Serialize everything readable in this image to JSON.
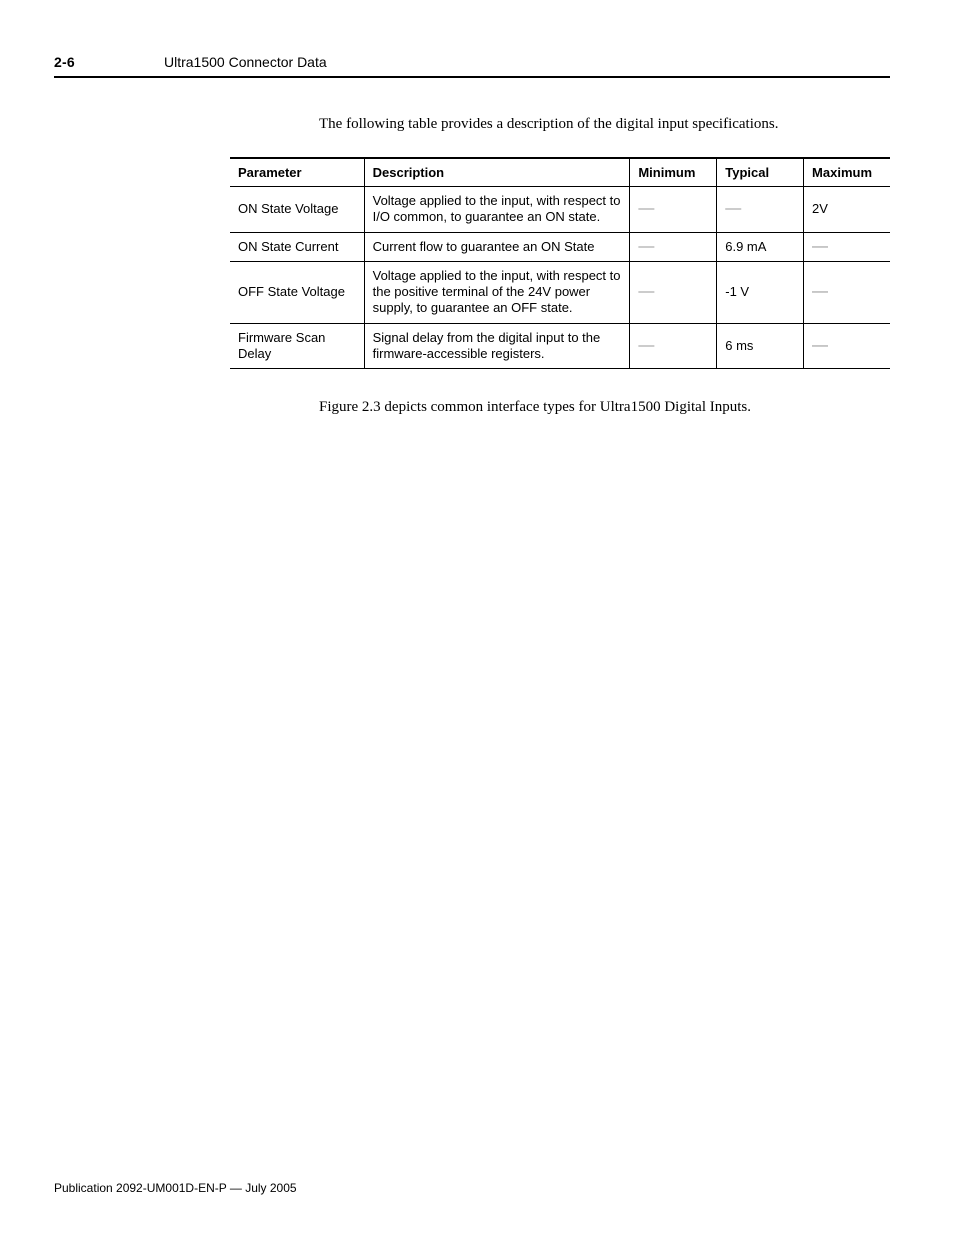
{
  "page_header": {
    "page_number": "2-6",
    "section_title": "Ultra1500 Connector Data"
  },
  "intro_text": "The following table provides a description of the digital input specifications.",
  "spec_table": {
    "columns": [
      "Parameter",
      "Description",
      "Minimum",
      "Typical",
      "Maximum"
    ],
    "dash_color": "#9a9a9a",
    "rows": [
      {
        "parameter": "ON State Voltage",
        "description": "Voltage applied to the input, with respect to I/O common, to guarantee an ON state.",
        "minimum": "—",
        "typical": "—",
        "maximum": "2V"
      },
      {
        "parameter": "ON State Current",
        "description": "Current flow to guarantee an ON State",
        "minimum": "—",
        "typical": "6.9 mA",
        "maximum": "—"
      },
      {
        "parameter": "OFF State Voltage",
        "description": "Voltage applied to the input, with respect to the positive terminal of the 24V power supply, to guarantee an OFF state.",
        "minimum": "—",
        "typical": "-1 V",
        "maximum": "—"
      },
      {
        "parameter": "Firmware Scan Delay",
        "description": "Signal delay from the digital input to the firmware-accessible registers.",
        "minimum": "—",
        "typical": "6 ms",
        "maximum": "—"
      }
    ]
  },
  "figure_caption": "Figure 2.3 depicts common interface types for Ultra1500 Digital Inputs.",
  "footer": "Publication 2092-UM001D-EN-P — July 2005"
}
